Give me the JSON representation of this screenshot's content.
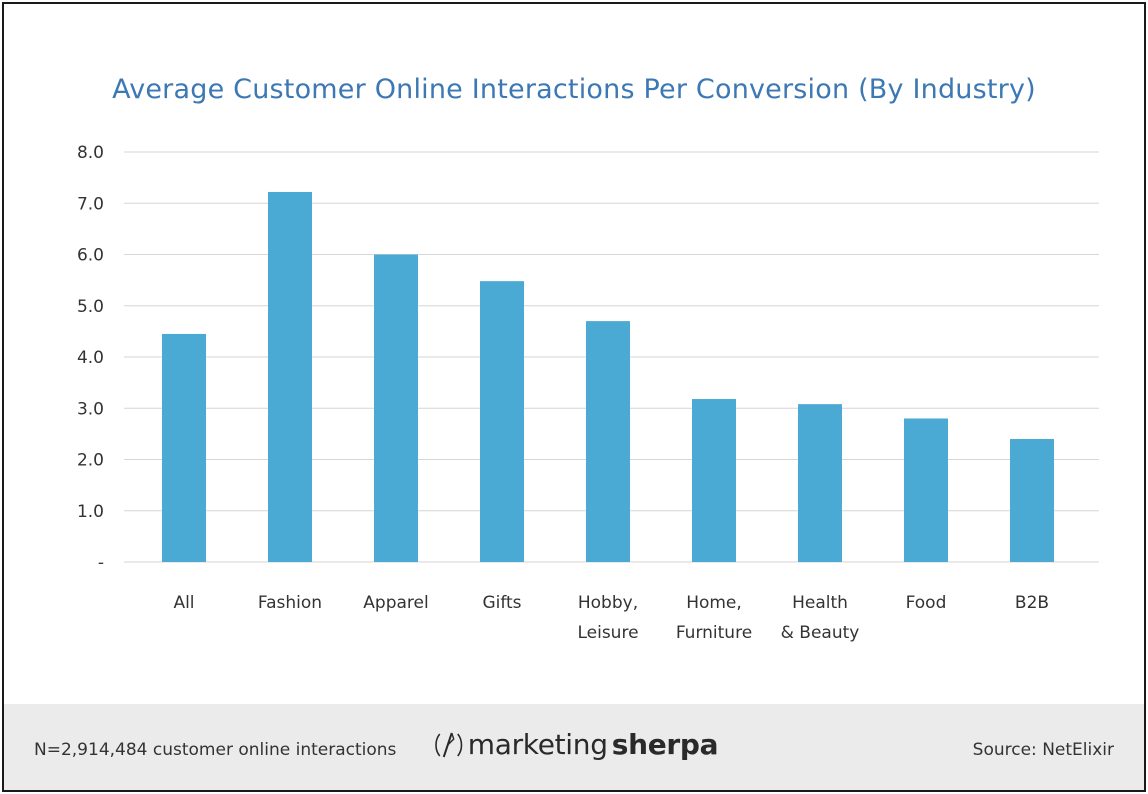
{
  "chart_data": {
    "type": "bar",
    "title": "Average Customer Online Interactions Per Conversion (By Industry)",
    "categories": [
      [
        "All"
      ],
      [
        "Fashion"
      ],
      [
        "Apparel"
      ],
      [
        "Gifts"
      ],
      [
        "Hobby,",
        "Leisure"
      ],
      [
        "Home,",
        "Furniture"
      ],
      [
        "Health",
        "& Beauty"
      ],
      [
        "Food"
      ],
      [
        "B2B"
      ]
    ],
    "values": [
      4.45,
      7.22,
      6.0,
      5.48,
      4.7,
      3.18,
      3.08,
      2.8,
      2.4
    ],
    "ylim": [
      0,
      8
    ],
    "yticks": [
      "-",
      "1.0",
      "2.0",
      "3.0",
      "4.0",
      "5.0",
      "6.0",
      "7.0",
      "8.0"
    ],
    "bar_color": "#4aaad4",
    "grid": true,
    "xlabel": "",
    "ylabel": ""
  },
  "footer": {
    "sample_note": "N=2,914,484 customer online interactions",
    "logo_prefix": "marketing",
    "logo_suffix": "sherpa",
    "source": "Source: NetElixir"
  }
}
